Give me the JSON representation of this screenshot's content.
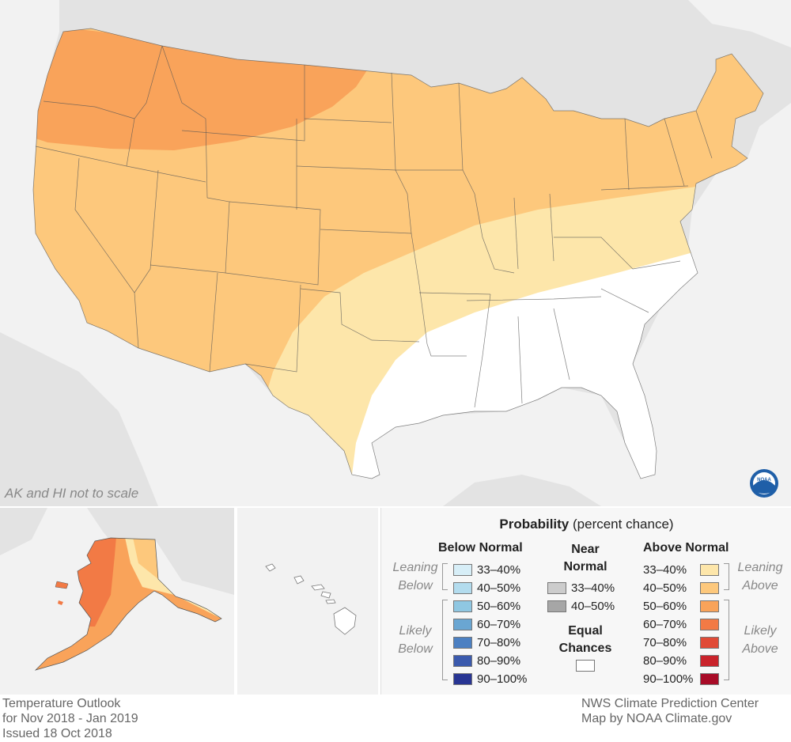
{
  "map": {
    "note": "AK and HI not to scale",
    "logo_text": "NOAA"
  },
  "legend": {
    "title_bold": "Probability",
    "title_rest": "(percent chance)",
    "below": {
      "header": "Below Normal",
      "leaning_label": "Leaning Below",
      "likely_label": "Likely Below",
      "items": [
        {
          "label": "33–40%",
          "color": "#d7eef7"
        },
        {
          "label": "40–50%",
          "color": "#b3dcee"
        },
        {
          "label": "50–60%",
          "color": "#8fc7e2"
        },
        {
          "label": "60–70%",
          "color": "#6aa6d2"
        },
        {
          "label": "70–80%",
          "color": "#4c80c2"
        },
        {
          "label": "80–90%",
          "color": "#3b5aad"
        },
        {
          "label": "90–100%",
          "color": "#283593"
        }
      ]
    },
    "near": {
      "header_line1": "Near",
      "header_line2": "Normal",
      "items": [
        {
          "label": "33–40%",
          "color": "#cccccc"
        },
        {
          "label": "40–50%",
          "color": "#a6a6a6"
        }
      ],
      "equal_line1": "Equal",
      "equal_line2": "Chances",
      "equal_color": "#ffffff"
    },
    "above": {
      "header": "Above Normal",
      "leaning_label": "Leaning Above",
      "likely_label": "Likely Above",
      "items": [
        {
          "label": "33–40%",
          "color": "#fde6aa"
        },
        {
          "label": "40–50%",
          "color": "#fdc87c"
        },
        {
          "label": "50–60%",
          "color": "#f9a35a"
        },
        {
          "label": "60–70%",
          "color": "#f27a45"
        },
        {
          "label": "70–80%",
          "color": "#e04a36"
        },
        {
          "label": "80–90%",
          "color": "#c9232b"
        },
        {
          "label": "90–100%",
          "color": "#a80b27"
        }
      ]
    }
  },
  "footer": {
    "left": [
      "Temperature Outlook",
      "for Nov 2018 - Jan 2019",
      "Issued 18 Oct 2018"
    ],
    "right": [
      "NWS Climate Prediction Center",
      "Map by NOAA Climate.gov"
    ]
  },
  "colors": {
    "background_land": "#e3e3e3",
    "water": "#f2f2f2",
    "equal_chances": "#ffffff",
    "leaning_above": "#fde6aa",
    "above_40_50": "#fdc87c",
    "above_50_60": "#f9a35a",
    "above_60_70": "#f27a45"
  }
}
